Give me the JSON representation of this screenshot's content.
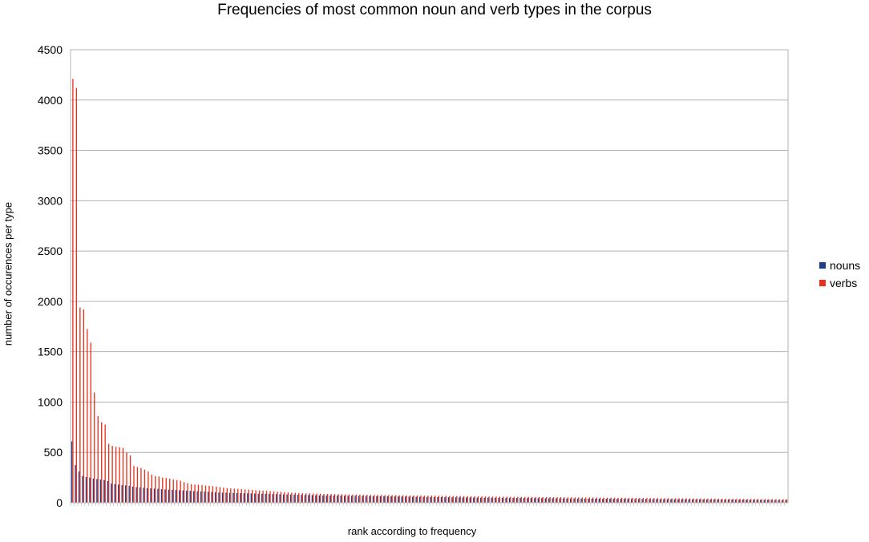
{
  "chart_data": {
    "type": "bar",
    "title": "Frequencies of most common noun and verb types in the corpus",
    "xlabel": "rank according to frequency",
    "ylabel": "number of occurences per type",
    "ylim": [
      0,
      4500
    ],
    "yticks": [
      "0",
      "500",
      "1000",
      "1500",
      "2000",
      "2500",
      "3000",
      "3500",
      "4000",
      "4500"
    ],
    "grid": true,
    "legend_position": "right",
    "n_categories": 200,
    "series": [
      {
        "name": "nouns",
        "color": "#1f3f8a",
        "values": [
          610,
          375,
          310,
          265,
          255,
          250,
          240,
          235,
          230,
          225,
          215,
          190,
          185,
          180,
          175,
          172,
          168,
          160,
          155,
          152,
          148,
          145,
          142,
          140,
          138,
          135,
          132,
          130,
          128,
          126,
          124,
          122,
          120,
          118,
          116,
          114,
          112,
          110,
          108,
          106,
          104,
          102,
          100,
          99,
          98,
          97,
          96,
          95,
          94,
          93,
          92,
          91,
          90,
          89,
          88,
          87,
          86,
          85,
          84,
          83,
          82,
          81,
          80,
          79,
          78,
          77,
          76,
          75,
          74,
          73,
          72,
          72,
          71,
          71,
          70,
          70,
          69,
          69,
          68,
          68,
          67,
          67,
          66,
          66,
          65,
          65,
          64,
          64,
          63,
          63,
          62,
          62,
          61,
          61,
          60,
          60,
          59,
          59,
          58,
          58,
          57,
          57,
          56,
          56,
          55,
          55,
          54,
          54,
          53,
          53,
          52,
          52,
          51,
          51,
          50,
          50,
          50,
          49,
          49,
          49,
          48,
          48,
          48,
          47,
          47,
          47,
          46,
          46,
          46,
          45,
          45,
          45,
          44,
          44,
          44,
          43,
          43,
          43,
          42,
          42,
          42,
          41,
          41,
          41,
          40,
          40,
          40,
          40,
          39,
          39,
          39,
          39,
          38,
          38,
          38,
          38,
          37,
          37,
          37,
          37,
          36,
          36,
          36,
          36,
          35,
          35,
          35,
          35,
          34,
          34,
          34,
          34,
          33,
          33,
          33,
          33,
          32,
          32,
          32,
          32,
          31,
          31,
          31,
          31,
          30,
          30,
          30,
          30,
          29,
          29,
          29,
          29,
          28,
          28,
          28,
          28,
          27,
          27,
          27,
          27
        ]
      },
      {
        "name": "verbs",
        "color": "#e8321e",
        "values": [
          4210,
          4120,
          1940,
          1920,
          1725,
          1590,
          1095,
          860,
          800,
          775,
          585,
          565,
          555,
          550,
          545,
          500,
          470,
          365,
          355,
          345,
          330,
          310,
          280,
          265,
          260,
          250,
          245,
          240,
          230,
          225,
          220,
          205,
          195,
          185,
          180,
          178,
          175,
          170,
          168,
          165,
          160,
          155,
          150,
          145,
          142,
          140,
          138,
          135,
          132,
          130,
          128,
          125,
          122,
          120,
          118,
          115,
          112,
          110,
          108,
          105,
          103,
          100,
          98,
          96,
          95,
          94,
          93,
          92,
          91,
          90,
          89,
          88,
          87,
          86,
          85,
          84,
          83,
          82,
          81,
          80,
          80,
          79,
          79,
          78,
          78,
          77,
          77,
          76,
          76,
          75,
          75,
          74,
          74,
          73,
          73,
          72,
          72,
          71,
          71,
          70,
          70,
          69,
          69,
          68,
          68,
          67,
          67,
          66,
          66,
          65,
          65,
          64,
          64,
          63,
          63,
          62,
          62,
          61,
          61,
          60,
          60,
          60,
          59,
          59,
          59,
          58,
          58,
          58,
          57,
          57,
          57,
          56,
          56,
          56,
          55,
          55,
          55,
          54,
          54,
          54,
          53,
          53,
          53,
          52,
          52,
          52,
          51,
          51,
          51,
          50,
          50,
          50,
          49,
          49,
          49,
          48,
          48,
          48,
          47,
          47,
          47,
          46,
          46,
          46,
          45,
          45,
          45,
          44,
          44,
          44,
          43,
          43,
          43,
          42,
          42,
          42,
          41,
          41,
          41,
          40,
          40,
          40,
          39,
          39,
          39,
          38,
          38,
          38,
          37,
          37,
          37,
          36,
          36,
          36,
          35,
          35,
          35,
          34,
          34,
          34,
          33,
          33
        ]
      }
    ]
  }
}
